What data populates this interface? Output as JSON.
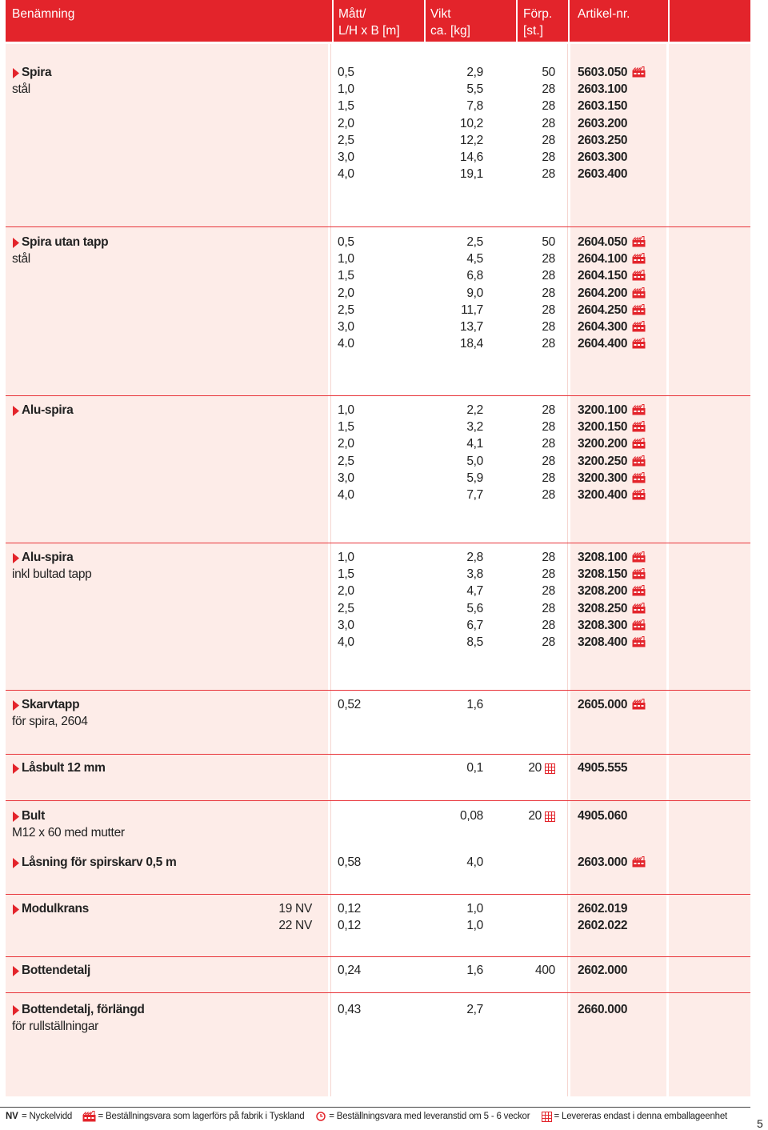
{
  "header": {
    "columns": [
      [
        "Benämning"
      ],
      [
        "Mått/",
        "L/H x B [m]"
      ],
      [
        "Vikt",
        "ca. [kg]"
      ],
      [
        "Förp.",
        "[st.]"
      ],
      [
        "Artikel-nr."
      ]
    ]
  },
  "groups": [
    {
      "name": "Spira",
      "sub": "stål",
      "rows": [
        {
          "s": "0,5",
          "w": "2,9",
          "p": "50",
          "a": "5603.050",
          "icon": "factory"
        },
        {
          "s": "1,0",
          "w": "5,5",
          "p": "28",
          "a": "2603.100"
        },
        {
          "s": "1,5",
          "w": "7,8",
          "p": "28",
          "a": "2603.150"
        },
        {
          "s": "2,0",
          "w": "10,2",
          "p": "28",
          "a": "2603.200"
        },
        {
          "s": "2,5",
          "w": "12,2",
          "p": "28",
          "a": "2603.250"
        },
        {
          "s": "3,0",
          "w": "14,6",
          "p": "28",
          "a": "2603.300"
        },
        {
          "s": "4,0",
          "w": "19,1",
          "p": "28",
          "a": "2603.400"
        }
      ]
    },
    {
      "name": "Spira utan tapp",
      "sub": "stål",
      "rows": [
        {
          "s": "0,5",
          "w": "2,5",
          "p": "50",
          "a": "2604.050",
          "icon": "factory"
        },
        {
          "s": "1,0",
          "w": "4,5",
          "p": "28",
          "a": "2604.100",
          "icon": "factory"
        },
        {
          "s": "1,5",
          "w": "6,8",
          "p": "28",
          "a": "2604.150",
          "icon": "factory"
        },
        {
          "s": "2,0",
          "w": "9,0",
          "p": "28",
          "a": "2604.200",
          "icon": "factory"
        },
        {
          "s": "2,5",
          "w": "11,7",
          "p": "28",
          "a": "2604.250",
          "icon": "factory"
        },
        {
          "s": "3,0",
          "w": "13,7",
          "p": "28",
          "a": "2604.300",
          "icon": "factory"
        },
        {
          "s": "4.0",
          "w": "18,4",
          "p": "28",
          "a": "2604.400",
          "icon": "factory"
        }
      ]
    },
    {
      "name": "Alu-spira",
      "rows": [
        {
          "s": "1,0",
          "w": "2,2",
          "p": "28",
          "a": "3200.100",
          "icon": "factory"
        },
        {
          "s": "1,5",
          "w": "3,2",
          "p": "28",
          "a": "3200.150",
          "icon": "factory"
        },
        {
          "s": "2,0",
          "w": "4,1",
          "p": "28",
          "a": "3200.200",
          "icon": "factory"
        },
        {
          "s": "2,5",
          "w": "5,0",
          "p": "28",
          "a": "3200.250",
          "icon": "factory"
        },
        {
          "s": "3,0",
          "w": "5,9",
          "p": "28",
          "a": "3200.300",
          "icon": "factory"
        },
        {
          "s": "4,0",
          "w": "7,7",
          "p": "28",
          "a": "3200.400",
          "icon": "factory"
        }
      ]
    },
    {
      "name": "Alu-spira",
      "sub": "inkl bultad tapp",
      "rows": [
        {
          "s": "1,0",
          "w": "2,8",
          "p": "28",
          "a": "3208.100",
          "icon": "factory"
        },
        {
          "s": "1,5",
          "w": "3,8",
          "p": "28",
          "a": "3208.150",
          "icon": "factory"
        },
        {
          "s": "2,0",
          "w": "4,7",
          "p": "28",
          "a": "3208.200",
          "icon": "factory"
        },
        {
          "s": "2,5",
          "w": "5,6",
          "p": "28",
          "a": "3208.250",
          "icon": "factory"
        },
        {
          "s": "3,0",
          "w": "6,7",
          "p": "28",
          "a": "3208.300",
          "icon": "factory"
        },
        {
          "s": "4,0",
          "w": "8,5",
          "p": "28",
          "a": "3208.400",
          "icon": "factory"
        }
      ]
    },
    {
      "name": "Skarvtapp",
      "sub": "för spira, 2604",
      "rows": [
        {
          "s": "0,52",
          "w": "1,6",
          "a": "2605.000",
          "icon": "factory"
        }
      ]
    },
    {
      "name": "Låsbult 12 mm",
      "rows": [
        {
          "w": "0,1",
          "p": "20",
          "a": "4905.555",
          "icon": "grid"
        }
      ]
    },
    {
      "name": "Bult",
      "sub": "M12 x 60 med mutter",
      "rows": [
        {
          "w": "0,08",
          "p": "20",
          "a": "4905.060",
          "icon": "grid"
        }
      ]
    },
    {
      "name": "Låsning för spirskarv 0,5 m",
      "rows": [
        {
          "s": "0,58",
          "w": "4,0",
          "a": "2603.000",
          "icon": "factory"
        }
      ]
    },
    {
      "name": "Modulkrans",
      "rows": [
        {
          "note": "19 NV",
          "s": "0,12",
          "w": "1,0",
          "a": "2602.019"
        },
        {
          "note": "22 NV",
          "s": "0,12",
          "w": "1,0",
          "a": "2602.022"
        }
      ]
    },
    {
      "name": "Bottendetalj",
      "rows": [
        {
          "s": "0,24",
          "w": "1,6",
          "p": "400",
          "a": "2602.000"
        }
      ]
    },
    {
      "name": "Bottendetalj, förlängd",
      "sub": "för rullställningar",
      "rows": [
        {
          "s": "0,43",
          "w": "2,7",
          "a": "2660.000"
        }
      ]
    }
  ],
  "footer": {
    "legend": [
      {
        "key": "NV",
        "text": "= Nyckelvidd"
      },
      {
        "icon": "factory",
        "text": "= Beställningsvara som lagerförs på fabrik i Tyskland"
      },
      {
        "icon": "clock",
        "text": "= Beställningsvara med leveranstid om 5 - 6 veckor"
      },
      {
        "icon": "grid",
        "text": "= Levereras endast i denna emballageenhet"
      }
    ],
    "page": "5"
  }
}
